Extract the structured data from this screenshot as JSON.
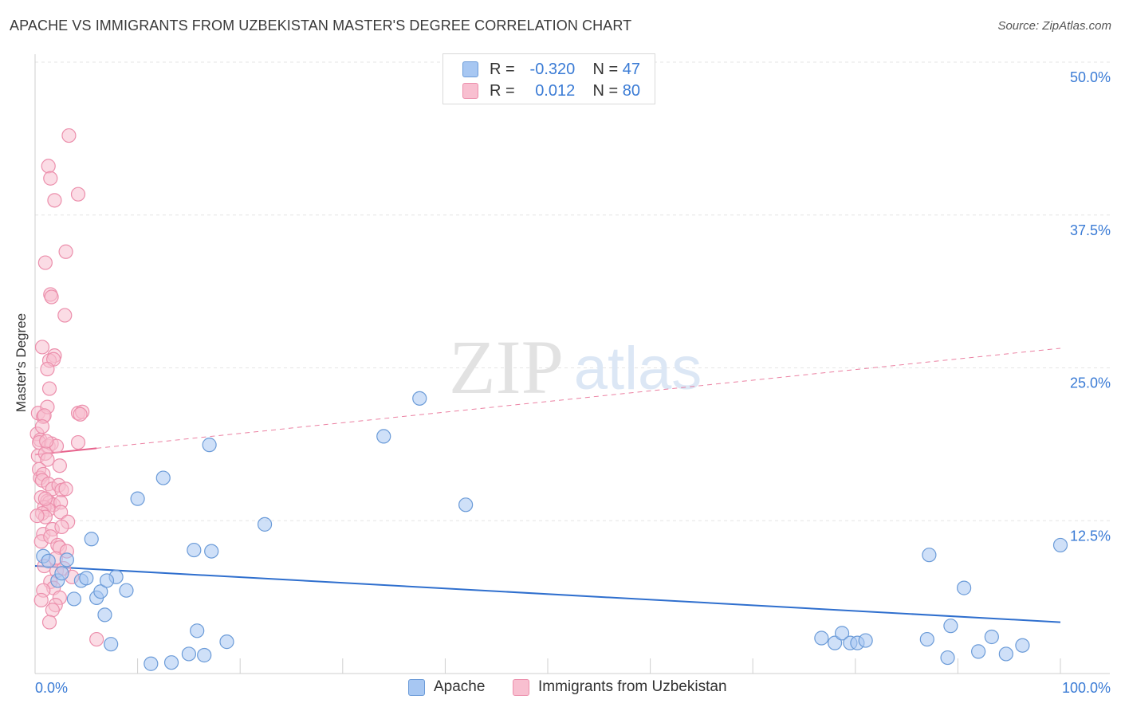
{
  "title": "APACHE VS IMMIGRANTS FROM UZBEKISTAN MASTER'S DEGREE CORRELATION CHART",
  "source": "Source: ZipAtlas.com",
  "watermark": {
    "zip": "ZIP",
    "atlas": "atlas"
  },
  "legend": {
    "rows": [
      {
        "r_label": "R =",
        "r_value": "-0.320",
        "n_label": "N =",
        "n_value": "47",
        "color": "#a7c7f2",
        "border": "#6b9bd8"
      },
      {
        "r_label": "R =",
        "r_value": "0.012",
        "n_label": "N =",
        "n_value": "80",
        "color": "#f8bfd0",
        "border": "#ec8fac"
      }
    ]
  },
  "bottom_legend": [
    {
      "label": "Apache",
      "color": "#a7c7f2",
      "border": "#6b9bd8"
    },
    {
      "label": "Immigrants from Uzbekistan",
      "color": "#f8bfd0",
      "border": "#ec8fac"
    }
  ],
  "chart_data": {
    "type": "scatter",
    "title": "APACHE VS IMMIGRANTS FROM UZBEKISTAN MASTER'S DEGREE CORRELATION CHART",
    "xlabel": "",
    "ylabel": "Master's Degree",
    "xlim": [
      0,
      100
    ],
    "ylim": [
      0,
      50
    ],
    "x_tick_labels": [
      "0.0%",
      "100.0%"
    ],
    "y_ticks": [
      12.5,
      25.0,
      37.5,
      50.0
    ],
    "y_tick_labels": [
      "12.5%",
      "25.0%",
      "37.5%",
      "50.0%"
    ],
    "grid": true,
    "series": [
      {
        "name": "Apache",
        "color": "#6b9bd8",
        "fill": "#a7c7f2",
        "line_color": "#2f6fce",
        "trend": {
          "x": [
            0,
            100
          ],
          "y": [
            8.8,
            4.2
          ]
        },
        "points": [
          [
            0.8,
            9.6
          ],
          [
            1.3,
            9.2
          ],
          [
            2.2,
            7.6
          ],
          [
            2.6,
            8.2
          ],
          [
            3.1,
            9.3
          ],
          [
            3.8,
            6.1
          ],
          [
            4.5,
            7.6
          ],
          [
            5.0,
            7.8
          ],
          [
            5.5,
            11.0
          ],
          [
            6.0,
            6.2
          ],
          [
            6.4,
            6.7
          ],
          [
            6.8,
            4.8
          ],
          [
            7.4,
            2.4
          ],
          [
            7.9,
            7.9
          ],
          [
            8.9,
            6.8
          ],
          [
            10.0,
            14.3
          ],
          [
            11.3,
            0.8
          ],
          [
            12.5,
            16.0
          ],
          [
            13.3,
            0.9
          ],
          [
            15.0,
            1.6
          ],
          [
            15.5,
            10.1
          ],
          [
            15.8,
            3.5
          ],
          [
            16.5,
            1.5
          ],
          [
            17.0,
            18.7
          ],
          [
            17.2,
            10.0
          ],
          [
            18.7,
            2.6
          ],
          [
            22.4,
            12.2
          ],
          [
            34.0,
            19.4
          ],
          [
            37.5,
            22.5
          ],
          [
            42.0,
            13.8
          ],
          [
            76.7,
            2.9
          ],
          [
            78.0,
            2.5
          ],
          [
            78.7,
            3.3
          ],
          [
            79.5,
            2.5
          ],
          [
            80.2,
            2.5
          ],
          [
            81.0,
            2.7
          ],
          [
            87.0,
            2.8
          ],
          [
            87.2,
            9.7
          ],
          [
            89.0,
            1.3
          ],
          [
            89.3,
            3.9
          ],
          [
            90.6,
            7.0
          ],
          [
            92.0,
            1.8
          ],
          [
            93.3,
            3.0
          ],
          [
            94.7,
            1.6
          ],
          [
            96.3,
            2.3
          ],
          [
            100.0,
            10.5
          ],
          [
            7.0,
            7.6
          ]
        ]
      },
      {
        "name": "Immigrants from Uzbekistan",
        "color": "#ec8fac",
        "fill": "#f8bfd0",
        "line_color": "#e7628c",
        "trend": {
          "x": [
            0,
            100
          ],
          "y": [
            17.9,
            26.6
          ]
        },
        "trend_solid_to_x": 6.0,
        "points": [
          [
            3.3,
            44.0
          ],
          [
            1.3,
            41.5
          ],
          [
            1.5,
            40.5
          ],
          [
            1.9,
            38.7
          ],
          [
            4.2,
            39.2
          ],
          [
            3.0,
            34.5
          ],
          [
            1.0,
            33.6
          ],
          [
            1.5,
            31.0
          ],
          [
            1.6,
            30.8
          ],
          [
            2.9,
            29.3
          ],
          [
            0.7,
            26.7
          ],
          [
            1.9,
            26.0
          ],
          [
            1.4,
            25.6
          ],
          [
            1.8,
            25.7
          ],
          [
            1.2,
            24.9
          ],
          [
            1.4,
            23.3
          ],
          [
            0.3,
            21.3
          ],
          [
            0.8,
            21.0
          ],
          [
            1.2,
            21.8
          ],
          [
            0.9,
            21.1
          ],
          [
            4.2,
            21.3
          ],
          [
            4.6,
            21.4
          ],
          [
            4.4,
            21.2
          ],
          [
            0.2,
            19.6
          ],
          [
            0.5,
            19.1
          ],
          [
            0.7,
            20.2
          ],
          [
            0.4,
            18.9
          ],
          [
            1.3,
            18.6
          ],
          [
            1.6,
            18.8
          ],
          [
            2.1,
            18.6
          ],
          [
            4.2,
            18.9
          ],
          [
            0.3,
            17.8
          ],
          [
            1.0,
            18.0
          ],
          [
            1.2,
            17.5
          ],
          [
            0.4,
            16.7
          ],
          [
            2.4,
            17.0
          ],
          [
            0.5,
            16.0
          ],
          [
            0.8,
            16.3
          ],
          [
            0.7,
            15.8
          ],
          [
            1.3,
            15.5
          ],
          [
            1.7,
            15.1
          ],
          [
            2.3,
            15.4
          ],
          [
            2.6,
            15.0
          ],
          [
            0.6,
            14.4
          ],
          [
            1.2,
            14.1
          ],
          [
            1.4,
            14.0
          ],
          [
            1.8,
            13.8
          ],
          [
            2.5,
            14.0
          ],
          [
            0.9,
            13.6
          ],
          [
            1.3,
            13.4
          ],
          [
            0.7,
            13.1
          ],
          [
            1.0,
            12.8
          ],
          [
            2.5,
            13.2
          ],
          [
            3.2,
            12.4
          ],
          [
            0.8,
            11.4
          ],
          [
            1.7,
            11.8
          ],
          [
            2.6,
            12.0
          ],
          [
            0.6,
            10.8
          ],
          [
            1.5,
            11.2
          ],
          [
            2.2,
            10.5
          ],
          [
            2.4,
            10.3
          ],
          [
            3.1,
            10.0
          ],
          [
            2.0,
            9.4
          ],
          [
            0.9,
            8.8
          ],
          [
            2.1,
            8.4
          ],
          [
            2.8,
            8.6
          ],
          [
            3.6,
            7.9
          ],
          [
            1.5,
            7.5
          ],
          [
            1.8,
            7.0
          ],
          [
            0.8,
            6.8
          ],
          [
            2.4,
            6.2
          ],
          [
            0.6,
            6.0
          ],
          [
            2.0,
            5.6
          ],
          [
            1.7,
            5.2
          ],
          [
            1.4,
            4.2
          ],
          [
            6.0,
            2.8
          ],
          [
            1.0,
            14.3
          ],
          [
            0.2,
            12.9
          ],
          [
            1.1,
            19.0
          ],
          [
            3.0,
            15.1
          ]
        ]
      }
    ]
  }
}
